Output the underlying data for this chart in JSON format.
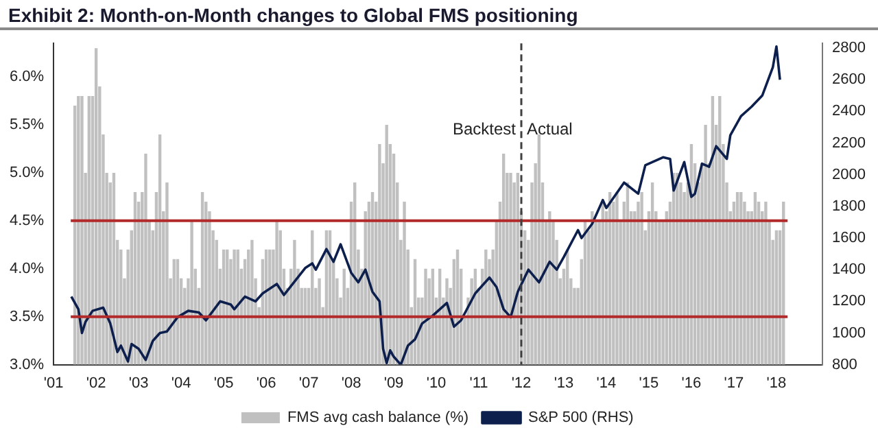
{
  "chart_data": {
    "type": "bar",
    "title": "Exhibit 2: Month-on-Month changes to Global FMS positioning",
    "x": [
      "2001-07",
      "2001-08",
      "2001-09",
      "2001-10",
      "2001-11",
      "2001-12",
      "2002-01",
      "2002-02",
      "2002-03",
      "2002-04",
      "2002-05",
      "2002-06",
      "2002-07",
      "2002-08",
      "2002-09",
      "2002-10",
      "2002-11",
      "2002-12",
      "2003-01",
      "2003-02",
      "2003-03",
      "2003-04",
      "2003-05",
      "2003-06",
      "2003-07",
      "2003-08",
      "2003-09",
      "2003-10",
      "2003-11",
      "2003-12",
      "2004-01",
      "2004-02",
      "2004-03",
      "2004-04",
      "2004-05",
      "2004-06",
      "2004-07",
      "2004-08",
      "2004-09",
      "2004-10",
      "2004-11",
      "2004-12",
      "2005-01",
      "2005-02",
      "2005-03",
      "2005-04",
      "2005-05",
      "2005-06",
      "2005-07",
      "2005-08",
      "2005-09",
      "2005-10",
      "2005-11",
      "2005-12",
      "2006-01",
      "2006-02",
      "2006-03",
      "2006-04",
      "2006-05",
      "2006-06",
      "2006-07",
      "2006-08",
      "2006-09",
      "2006-10",
      "2006-11",
      "2006-12",
      "2007-01",
      "2007-02",
      "2007-03",
      "2007-04",
      "2007-05",
      "2007-06",
      "2007-07",
      "2007-08",
      "2007-09",
      "2007-10",
      "2007-11",
      "2007-12",
      "2008-01",
      "2008-02",
      "2008-03",
      "2008-04",
      "2008-05",
      "2008-06",
      "2008-07",
      "2008-08",
      "2008-09",
      "2008-10",
      "2008-11",
      "2008-12",
      "2009-01",
      "2009-02",
      "2009-03",
      "2009-04",
      "2009-05",
      "2009-06",
      "2009-07",
      "2009-08",
      "2009-09",
      "2009-10",
      "2009-11",
      "2009-12",
      "2010-01",
      "2010-02",
      "2010-03",
      "2010-04",
      "2010-05",
      "2010-06",
      "2010-07",
      "2010-08",
      "2010-09",
      "2010-10",
      "2010-11",
      "2010-12",
      "2011-01",
      "2011-02",
      "2011-03",
      "2011-04",
      "2011-05",
      "2011-06",
      "2011-07",
      "2011-08",
      "2011-09",
      "2011-10",
      "2011-11",
      "2011-12",
      "2012-01",
      "2012-02",
      "2012-03",
      "2012-04",
      "2012-05",
      "2012-06",
      "2012-07",
      "2012-08",
      "2012-09",
      "2012-10",
      "2012-11",
      "2012-12",
      "2013-01",
      "2013-02",
      "2013-03",
      "2013-04",
      "2013-05",
      "2013-06",
      "2013-07",
      "2013-08",
      "2013-09",
      "2013-10",
      "2013-11",
      "2013-12",
      "2014-01",
      "2014-02",
      "2014-03",
      "2014-04",
      "2014-05",
      "2014-06",
      "2014-07",
      "2014-08",
      "2014-09",
      "2014-10",
      "2014-11",
      "2014-12",
      "2015-01",
      "2015-02",
      "2015-03",
      "2015-04",
      "2015-05",
      "2015-06",
      "2015-07",
      "2015-08",
      "2015-09",
      "2015-10",
      "2015-11",
      "2015-12",
      "2016-01",
      "2016-02",
      "2016-03",
      "2016-04",
      "2016-05",
      "2016-06",
      "2016-07",
      "2016-08",
      "2016-09",
      "2016-10",
      "2016-11",
      "2016-12",
      "2017-01",
      "2017-02",
      "2017-03",
      "2017-04",
      "2017-05",
      "2017-06",
      "2017-07",
      "2017-08",
      "2017-09",
      "2017-10",
      "2017-11",
      "2017-12",
      "2018-01",
      "2018-02",
      "2018-03"
    ],
    "series": [
      {
        "name": "FMS avg cash balance (%)",
        "color": "#c0c0c0",
        "values": [
          5.7,
          5.8,
          5.8,
          5.0,
          5.8,
          5.8,
          6.3,
          5.9,
          5.4,
          5.0,
          4.9,
          5.0,
          4.3,
          4.2,
          3.9,
          4.2,
          4.4,
          4.8,
          4.7,
          4.8,
          5.2,
          4.5,
          4.4,
          4.8,
          5.4,
          4.6,
          4.9,
          3.9,
          4.1,
          4.1,
          3.9,
          3.8,
          3.9,
          4.5,
          4.0,
          3.8,
          4.8,
          4.7,
          4.6,
          4.4,
          4.3,
          4.0,
          4.2,
          4.2,
          4.1,
          4.2,
          4.2,
          4.0,
          4.1,
          4.2,
          4.3,
          3.9,
          3.6,
          4.1,
          4.2,
          4.2,
          4.2,
          4.5,
          4.4,
          4.0,
          3.8,
          4.0,
          4.3,
          4.0,
          3.8,
          3.8,
          3.8,
          4.4,
          3.8,
          3.9,
          3.6,
          4.4,
          4.4,
          4.1,
          3.9,
          3.7,
          4.0,
          3.8,
          4.7,
          4.9,
          4.2,
          4.0,
          4.6,
          4.7,
          4.8,
          4.7,
          5.3,
          5.1,
          5.5,
          5.3,
          5.2,
          4.9,
          4.3,
          4.7,
          4.2,
          3.6,
          4.1,
          3.7,
          3.7,
          4.0,
          3.9,
          4.0,
          3.7,
          4.0,
          3.7,
          3.9,
          3.8,
          4.1,
          4.2,
          4.0,
          3.5,
          3.7,
          3.9,
          4.0,
          3.8,
          4.0,
          4.2,
          4.1,
          4.2,
          4.5,
          4.7,
          5.2,
          5.0,
          5.0,
          4.9,
          5.0,
          4.6,
          4.4,
          4.3,
          4.9,
          5.1,
          5.4,
          4.9,
          4.5,
          4.6,
          4.5,
          4.3,
          3.9,
          4.0,
          4.2,
          3.9,
          3.8,
          3.8,
          4.1,
          4.5,
          4.4,
          4.6,
          4.5,
          4.5,
          4.7,
          4.6,
          4.8,
          4.7,
          4.8,
          4.5,
          4.7,
          4.9,
          4.6,
          4.6,
          4.7,
          4.8,
          4.4,
          4.6,
          4.9,
          4.6,
          4.5,
          4.5,
          4.6,
          4.7,
          5.0,
          5.0,
          4.9,
          4.8,
          4.9,
          5.3,
          5.1,
          4.9,
          5.1,
          5.5,
          5.1,
          5.8,
          5.5,
          5.8,
          5.3,
          4.9,
          4.6,
          4.7,
          4.8,
          4.8,
          4.7,
          4.6,
          4.6,
          4.8,
          4.7,
          4.6,
          4.7,
          4.5,
          4.3,
          4.4,
          4.4,
          4.7
        ]
      },
      {
        "name": "S&P 500 (RHS)",
        "type": "line",
        "axis": "y2",
        "color": "#0d1f4d",
        "x": [
          "2001-06",
          "2001-08",
          "2001-09",
          "2001-10",
          "2001-12",
          "2002-03",
          "2002-05",
          "2002-07",
          "2002-08",
          "2002-10",
          "2002-11",
          "2003-01",
          "2003-03",
          "2003-05",
          "2003-07",
          "2003-09",
          "2003-12",
          "2004-03",
          "2004-06",
          "2004-08",
          "2004-12",
          "2005-03",
          "2005-04",
          "2005-07",
          "2005-10",
          "2005-12",
          "2006-04",
          "2006-06",
          "2006-12",
          "2007-02",
          "2007-03",
          "2007-06",
          "2007-08",
          "2007-10",
          "2008-01",
          "2008-03",
          "2008-05",
          "2008-07",
          "2008-09",
          "2008-10",
          "2008-11",
          "2008-12",
          "2009-01",
          "2009-03",
          "2009-05",
          "2009-07",
          "2009-09",
          "2009-12",
          "2010-04",
          "2010-06",
          "2010-08",
          "2010-12",
          "2011-04",
          "2011-06",
          "2011-08",
          "2011-10",
          "2011-12",
          "2012-03",
          "2012-06",
          "2012-09",
          "2012-11",
          "2013-01",
          "2013-05",
          "2013-06",
          "2013-09",
          "2013-12",
          "2014-01",
          "2014-06",
          "2014-10",
          "2014-12",
          "2015-05",
          "2015-07",
          "2015-08",
          "2015-11",
          "2016-01",
          "2016-02",
          "2016-04",
          "2016-06",
          "2016-08",
          "2016-11",
          "2016-12",
          "2017-03",
          "2017-06",
          "2017-09",
          "2017-12",
          "2018-01",
          "2018-02"
        ],
        "values": [
          1230,
          1150,
          1000,
          1070,
          1140,
          1160,
          1060,
          880,
          920,
          820,
          930,
          900,
          830,
          950,
          1000,
          1010,
          1100,
          1140,
          1130,
          1080,
          1200,
          1180,
          1150,
          1230,
          1200,
          1250,
          1310,
          1240,
          1410,
          1440,
          1400,
          1530,
          1450,
          1560,
          1380,
          1320,
          1400,
          1260,
          1200,
          900,
          810,
          890,
          850,
          800,
          920,
          960,
          1060,
          1110,
          1190,
          1040,
          1080,
          1250,
          1350,
          1290,
          1150,
          1100,
          1260,
          1400,
          1320,
          1450,
          1400,
          1480,
          1650,
          1600,
          1690,
          1840,
          1790,
          1950,
          1880,
          2060,
          2110,
          2100,
          1900,
          2080,
          1860,
          1880,
          2070,
          2050,
          2180,
          2100,
          2250,
          2370,
          2430,
          2500,
          2680,
          2810,
          2600
        ]
      }
    ],
    "xlim": [
      "2001-01",
      "2019-02"
    ],
    "xticks": [
      {
        "value": "2001-01",
        "label": "'01"
      },
      {
        "value": "2002-01",
        "label": "'02"
      },
      {
        "value": "2003-01",
        "label": "'03"
      },
      {
        "value": "2004-01",
        "label": "'04"
      },
      {
        "value": "2005-01",
        "label": "'05"
      },
      {
        "value": "2006-01",
        "label": "'06"
      },
      {
        "value": "2007-01",
        "label": "'07"
      },
      {
        "value": "2008-01",
        "label": "'08"
      },
      {
        "value": "2009-01",
        "label": "'09"
      },
      {
        "value": "2010-01",
        "label": "'10"
      },
      {
        "value": "2011-01",
        "label": "'11"
      },
      {
        "value": "2012-01",
        "label": "'12"
      },
      {
        "value": "2013-01",
        "label": "'13"
      },
      {
        "value": "2014-01",
        "label": "'14"
      },
      {
        "value": "2015-01",
        "label": "'15"
      },
      {
        "value": "2016-01",
        "label": "'16"
      },
      {
        "value": "2017-01",
        "label": "'17"
      },
      {
        "value": "2018-01",
        "label": "'18"
      }
    ],
    "ylim": [
      3.0,
      6.35
    ],
    "yticks": [
      {
        "value": 3.0,
        "label": "3.0%"
      },
      {
        "value": 3.5,
        "label": "3.5%"
      },
      {
        "value": 4.0,
        "label": "4.0%"
      },
      {
        "value": 4.5,
        "label": "4.5%"
      },
      {
        "value": 5.0,
        "label": "5.0%"
      },
      {
        "value": 5.5,
        "label": "5.5%"
      },
      {
        "value": 6.0,
        "label": "6.0%"
      }
    ],
    "y2lim": [
      800,
      2830
    ],
    "y2ticks": [
      800,
      1000,
      1200,
      1400,
      1600,
      1800,
      2000,
      2200,
      2400,
      2600,
      2800
    ],
    "ref_lines": [
      {
        "axis": "y",
        "value": 4.5,
        "color": "#b22a2a"
      },
      {
        "axis": "y",
        "value": 3.5,
        "color": "#b22a2a"
      },
      {
        "axis": "x",
        "value": "2012-01",
        "color": "#404040",
        "line_style": "dashed"
      }
    ],
    "annotations": [
      "Backtest",
      "Actual"
    ],
    "grid": false,
    "legend": "bottom"
  }
}
